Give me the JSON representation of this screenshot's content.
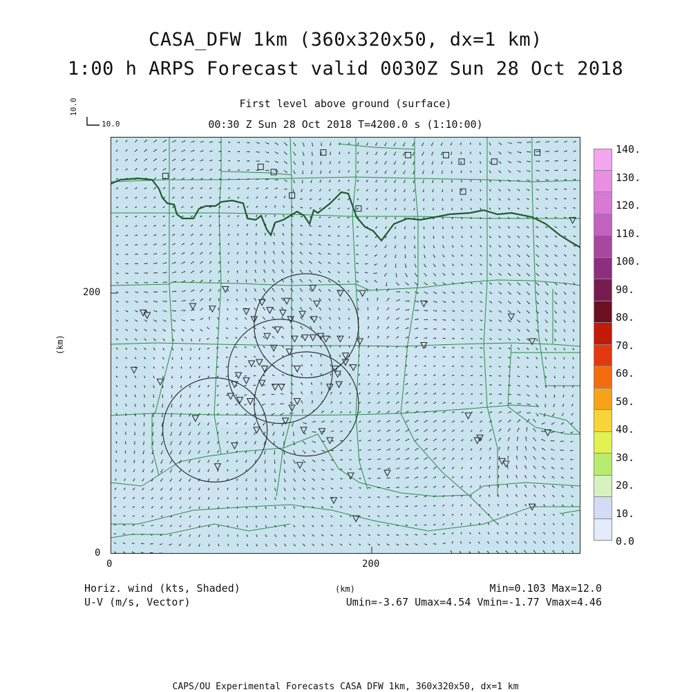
{
  "header": {
    "title_line1": "CASA_DFW 1km (360x320x50, dx=1 km)",
    "title_line2": "1:00 h ARPS Forecast valid 0030Z Sun 28 Oct 2018",
    "subtitle_level": "First level above ground (surface)",
    "subtitle_time": "00:30 Z Sun 28 Oct 2018    T=4200.0 s (1:10:00)",
    "vector_ref_label": "10.0"
  },
  "axes": {
    "y_label": "(km)",
    "x_label": "(km)",
    "y_ticks": [
      {
        "value": 0,
        "label": "0"
      },
      {
        "value": 200,
        "label": "200"
      }
    ],
    "x_ticks": [
      {
        "value": 0,
        "label": "0"
      },
      {
        "value": 200,
        "label": "200"
      }
    ],
    "x_range": [
      0,
      360
    ],
    "y_range": [
      0,
      320
    ]
  },
  "colorbar": {
    "labels": [
      "140.",
      "130.",
      "120.",
      "110.",
      "100.",
      "90.",
      "80.",
      "70.",
      "60.",
      "50.",
      "40.",
      "30.",
      "20.",
      "10.",
      "0.0"
    ],
    "colors": [
      "#f4a4f0",
      "#e88fe2",
      "#d77ad4",
      "#c262c0",
      "#a8479f",
      "#8c2f7f",
      "#771c4f",
      "#6a1020",
      "#c41a0a",
      "#e4380e",
      "#f46c10",
      "#f7a31a",
      "#f7d53a",
      "#e2f250",
      "#b8ec70",
      "#d6f2c0",
      "#d3dcf6",
      "#e2ecfb"
    ]
  },
  "map": {
    "background_color": "#c9e4ef",
    "county_line_color": "#2a8a42",
    "river_color": "#1f5a2a",
    "radar_circle_color": "#222222",
    "radar_circles": [
      {
        "cx": 150,
        "cy": 175,
        "r": 40
      },
      {
        "cx": 130,
        "cy": 140,
        "r": 40
      },
      {
        "cx": 150,
        "cy": 115,
        "r": 40
      },
      {
        "cx": 80,
        "cy": 95,
        "r": 40
      },
      {
        "cx": 195,
        "cy": 110,
        "r": 0
      }
    ],
    "square_stations": [
      [
        42,
        290
      ],
      [
        115,
        297
      ],
      [
        125,
        293
      ],
      [
        163,
        308
      ],
      [
        228,
        306
      ],
      [
        269,
        301
      ],
      [
        257,
        306
      ],
      [
        190,
        265
      ],
      [
        139,
        275
      ],
      [
        327,
        308
      ],
      [
        294,
        301
      ],
      [
        270,
        278
      ]
    ],
    "triangle_stations": [
      [
        88,
        203
      ],
      [
        78,
        188
      ],
      [
        63,
        190
      ],
      [
        25,
        185
      ],
      [
        18,
        141
      ],
      [
        38,
        132
      ],
      [
        155,
        204
      ],
      [
        176,
        200
      ],
      [
        193,
        200
      ],
      [
        240,
        192
      ],
      [
        135,
        194
      ],
      [
        158,
        192
      ],
      [
        147,
        184
      ],
      [
        132,
        185
      ],
      [
        122,
        187
      ],
      [
        116,
        193
      ],
      [
        104,
        186
      ],
      [
        110,
        180
      ],
      [
        138,
        180
      ],
      [
        156,
        180
      ],
      [
        128,
        172
      ],
      [
        120,
        167
      ],
      [
        141,
        165
      ],
      [
        149,
        166
      ],
      [
        155,
        166
      ],
      [
        161,
        167
      ],
      [
        165,
        165
      ],
      [
        176,
        165
      ],
      [
        191,
        163
      ],
      [
        125,
        158
      ],
      [
        137,
        155
      ],
      [
        114,
        147
      ],
      [
        108,
        146
      ],
      [
        118,
        142
      ],
      [
        143,
        142
      ],
      [
        180,
        147
      ],
      [
        172,
        142
      ],
      [
        174,
        138
      ],
      [
        186,
        143
      ],
      [
        180,
        152
      ],
      [
        98,
        137
      ],
      [
        104,
        133
      ],
      [
        116,
        131
      ],
      [
        126,
        128
      ],
      [
        131,
        128
      ],
      [
        168,
        128
      ],
      [
        175,
        130
      ],
      [
        95,
        130
      ],
      [
        92,
        121
      ],
      [
        99,
        118
      ],
      [
        107,
        117
      ],
      [
        139,
        112
      ],
      [
        143,
        117
      ],
      [
        65,
        104
      ],
      [
        134,
        102
      ],
      [
        148,
        95
      ],
      [
        162,
        94
      ],
      [
        112,
        95
      ],
      [
        95,
        83
      ],
      [
        168,
        87
      ],
      [
        82,
        67
      ],
      [
        145,
        68
      ],
      [
        184,
        60
      ],
      [
        212,
        62
      ],
      [
        171,
        41
      ],
      [
        188,
        27
      ],
      [
        323,
        36
      ],
      [
        300,
        71
      ],
      [
        335,
        93
      ],
      [
        283,
        89
      ],
      [
        303,
        69
      ],
      [
        240,
        160
      ],
      [
        307,
        182
      ],
      [
        323,
        163
      ],
      [
        354,
        256
      ],
      [
        28,
        183
      ],
      [
        274,
        106
      ],
      [
        281,
        87
      ]
    ]
  },
  "footer_left": {
    "line1": "Horiz. wind (kts, Shaded)",
    "line2": "U-V (m/s, Vector)"
  },
  "footer_center": "(km)",
  "footer_right": {
    "line1": "Min=0.103 Max=12.0",
    "line2": "Umin=-3.67 Umax=4.54 Vmin=-1.77 Vmax=4.46"
  },
  "footer_credit": "CAPS/OU Experimental Forecasts  CASA DFW 1km, 360x320x50, dx=1 km"
}
